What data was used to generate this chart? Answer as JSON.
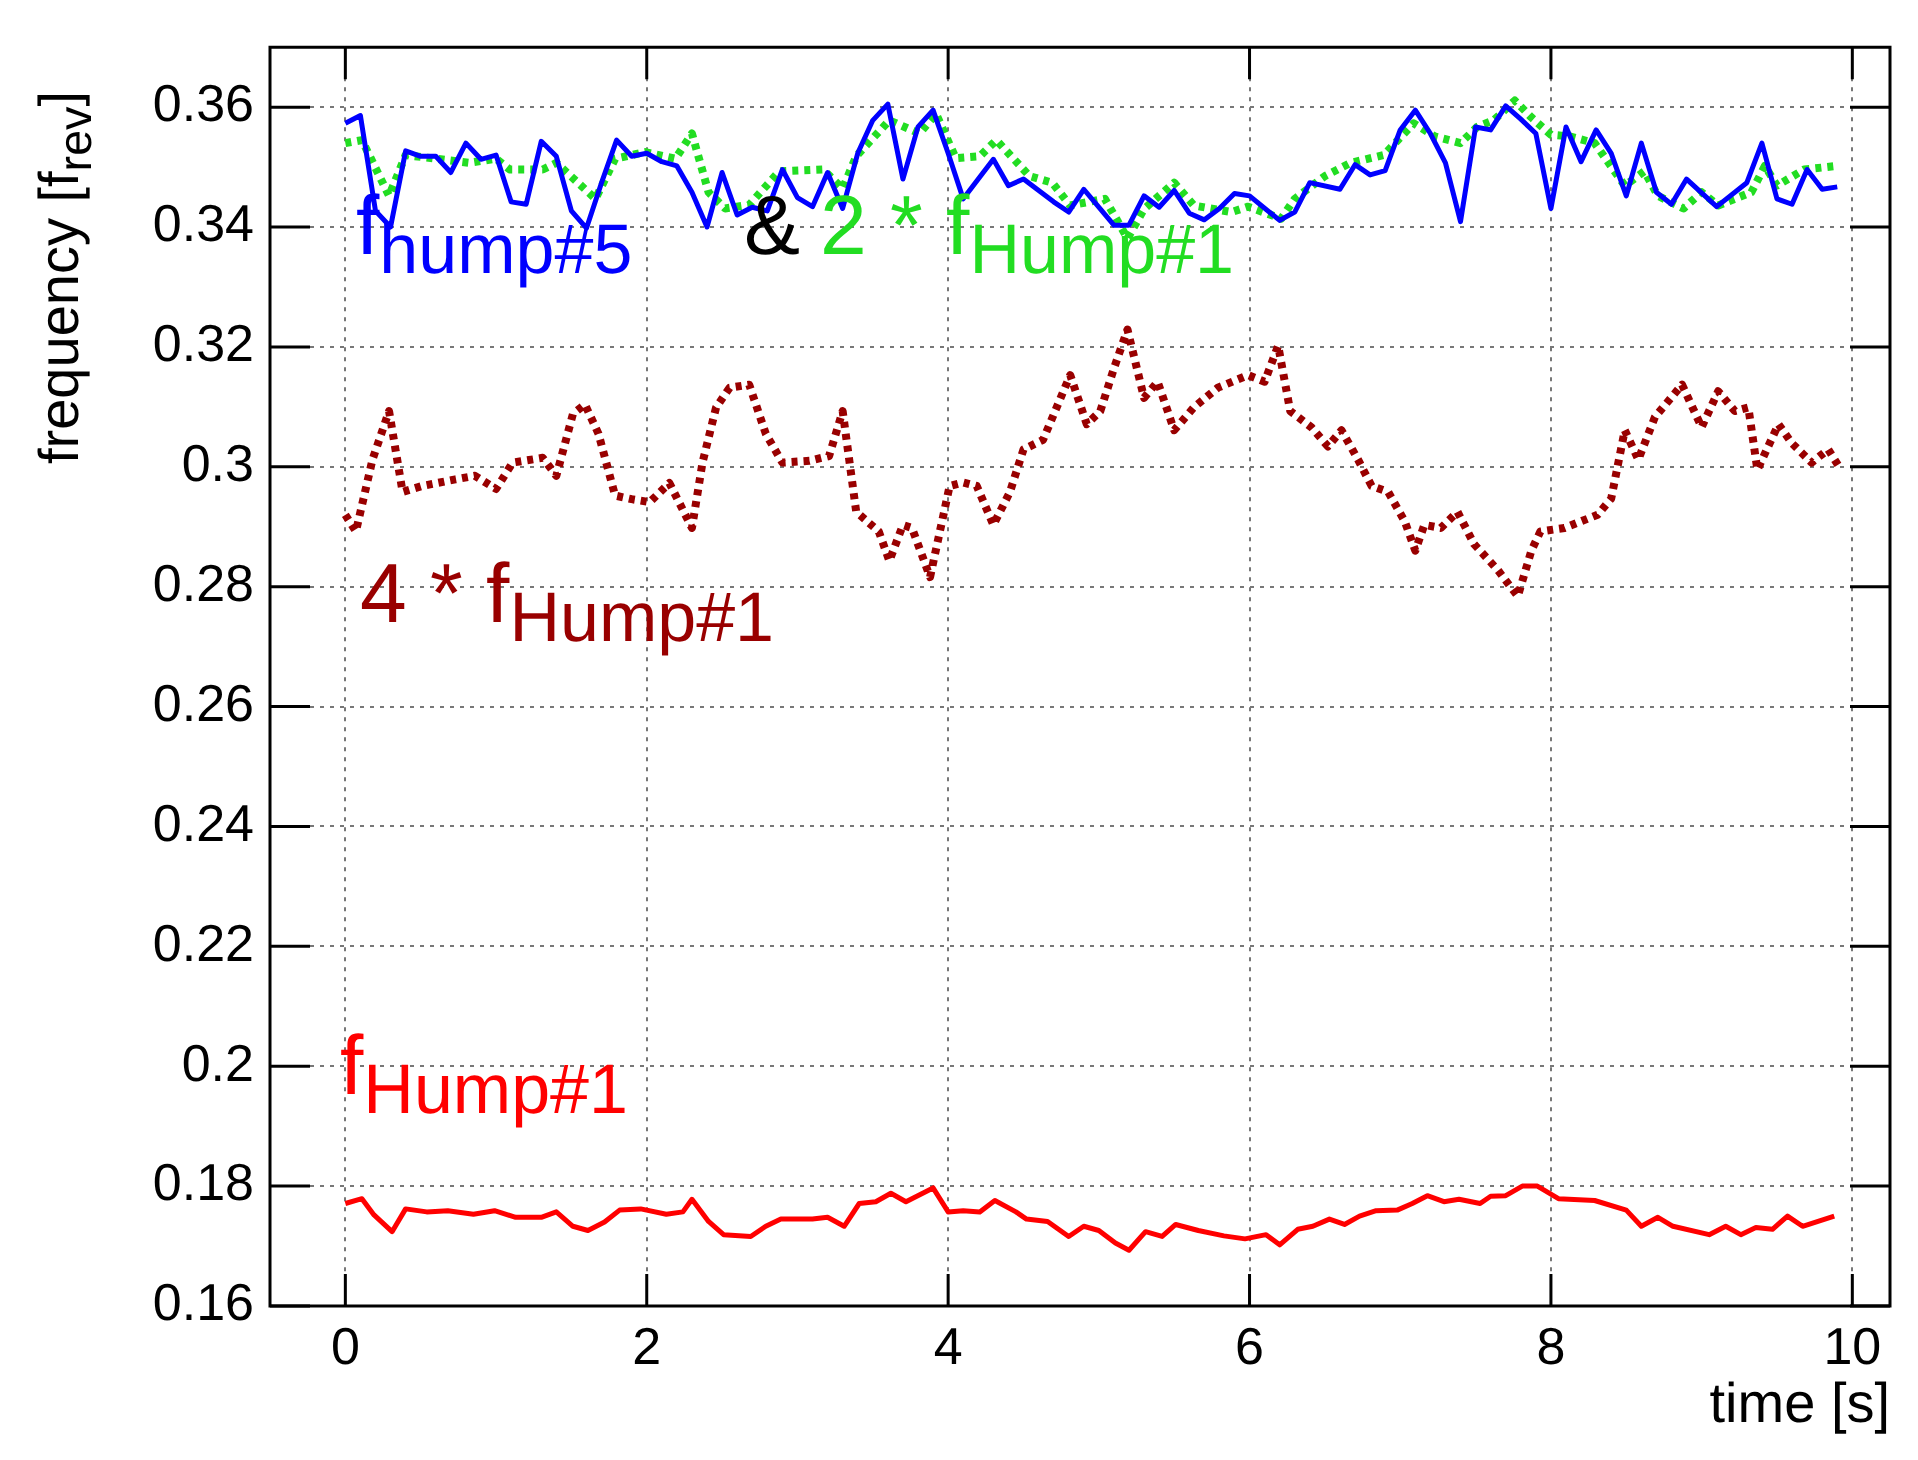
{
  "chart_data": {
    "type": "line",
    "xlabel": "time [s]",
    "ylabel": "frequency [f$_{rev}$]",
    "xlim": [
      -0.5,
      10.25
    ],
    "ylim": [
      0.16,
      0.37
    ],
    "xticks": [
      0,
      2,
      4,
      6,
      8,
      10
    ],
    "yticks": [
      0.16,
      0.18,
      0.2,
      0.22,
      0.24,
      0.26,
      0.28,
      0.3,
      0.32,
      0.34,
      0.36
    ],
    "grid": true,
    "legend": false,
    "marker": "none",
    "annotations": [
      "&"
    ],
    "series": [
      {
        "name": "f$_{hump#5}$",
        "color": "#0000ff",
        "line_style": "solid",
        "x": [
          0,
          0.1,
          0.2,
          0.3,
          0.4,
          0.5,
          0.6,
          0.7,
          0.8,
          0.9,
          1,
          1.1,
          1.2,
          1.3,
          1.4,
          1.5,
          1.6,
          1.7,
          1.8,
          1.9,
          2,
          2.1,
          2.2,
          2.3,
          2.4,
          2.5,
          2.6,
          2.7,
          2.8,
          2.9,
          3,
          3.1,
          3.2,
          3.3,
          3.4,
          3.5,
          3.6,
          3.7,
          3.8,
          3.9,
          4,
          4.1,
          4.3,
          4.4,
          4.5,
          4.7,
          4.8,
          4.9,
          5.1,
          5.2,
          5.3,
          5.4,
          5.5,
          5.6,
          5.7,
          5.8,
          5.9,
          6,
          6.2,
          6.3,
          6.4,
          6.6,
          6.7,
          6.8,
          6.9,
          7,
          7.1,
          7.2,
          7.3,
          7.4,
          7.5,
          7.6,
          7.7,
          7.8,
          7.9,
          8,
          8.1,
          8.2,
          8.3,
          8.4,
          8.5,
          8.6,
          8.7,
          8.8,
          8.9,
          9.1,
          9.3,
          9.4,
          9.5,
          9.6,
          9.7,
          9.8,
          9.9
        ],
        "values": [
          0.3573,
          0.3586,
          0.3427,
          0.34,
          0.3527,
          0.3518,
          0.3518,
          0.3491,
          0.354,
          0.3513,
          0.352,
          0.3442,
          0.3438,
          0.3543,
          0.3518,
          0.3427,
          0.3398,
          0.3474,
          0.3545,
          0.3518,
          0.3523,
          0.3509,
          0.3502,
          0.3458,
          0.34,
          0.3491,
          0.342,
          0.3433,
          0.3427,
          0.3496,
          0.3449,
          0.3434,
          0.3491,
          0.3431,
          0.3523,
          0.3578,
          0.3605,
          0.348,
          0.3567,
          0.3595,
          0.3523,
          0.3447,
          0.3513,
          0.3469,
          0.348,
          0.3442,
          0.3425,
          0.3463,
          0.3403,
          0.3403,
          0.3452,
          0.3433,
          0.3461,
          0.3423,
          0.3412,
          0.3431,
          0.3456,
          0.3452,
          0.3411,
          0.3425,
          0.3474,
          0.3463,
          0.3504,
          0.3487,
          0.3494,
          0.3562,
          0.3595,
          0.3556,
          0.3507,
          0.3409,
          0.3567,
          0.3562,
          0.3602,
          0.358,
          0.3556,
          0.3431,
          0.3567,
          0.3509,
          0.3562,
          0.3523,
          0.3452,
          0.354,
          0.3458,
          0.3438,
          0.348,
          0.3434,
          0.3474,
          0.354,
          0.3447,
          0.3438,
          0.3496,
          0.3463,
          0.3467
        ]
      },
      {
        "name": "2 * f$_{Hump#1}$",
        "color": "#22dd22",
        "line_style": "dotted",
        "x": [
          0,
          0.11,
          0.29,
          0.4,
          0.6,
          0.82,
          1,
          1.09,
          1.31,
          1.4,
          1.66,
          1.79,
          1.99,
          2.19,
          2.3,
          2.41,
          2.52,
          2.68,
          2.88,
          3.17,
          3.3,
          3.39,
          3.61,
          3.81,
          3.92,
          4.05,
          4.21,
          4.32,
          4.54,
          4.69,
          4.81,
          5.04,
          5.19,
          5.3,
          5.5,
          5.63,
          5.88,
          5.99,
          6.21,
          6.3,
          6.5,
          6.67,
          6.89,
          7.09,
          7.23,
          7.4,
          7.51,
          7.62,
          7.76,
          7.87,
          8,
          8.13,
          8.29,
          8.49,
          8.62,
          8.71,
          8.88,
          9,
          9.11,
          9.33,
          9.42,
          9.5,
          9.68,
          9.9
        ],
        "values": [
          0.354,
          0.3545,
          0.3452,
          0.352,
          0.3514,
          0.3507,
          0.3514,
          0.3496,
          0.3496,
          0.3507,
          0.3447,
          0.3514,
          0.3525,
          0.3514,
          0.3556,
          0.3458,
          0.3431,
          0.3437,
          0.3493,
          0.3496,
          0.3464,
          0.3518,
          0.3578,
          0.3556,
          0.3589,
          0.3515,
          0.3518,
          0.3545,
          0.3485,
          0.3474,
          0.3436,
          0.3447,
          0.3381,
          0.343,
          0.3474,
          0.3436,
          0.3425,
          0.3434,
          0.3414,
          0.3447,
          0.3485,
          0.3507,
          0.352,
          0.3573,
          0.3551,
          0.354,
          0.3567,
          0.3578,
          0.3611,
          0.3583,
          0.3554,
          0.3551,
          0.354,
          0.3469,
          0.3493,
          0.3452,
          0.3431,
          0.3458,
          0.3436,
          0.3458,
          0.3502,
          0.3469,
          0.3496,
          0.3502
        ]
      },
      {
        "name": "4 * f$_{Hump#1}$",
        "color": "#990000",
        "line_style": "dotted",
        "x": [
          0,
          0.07,
          0.18,
          0.29,
          0.38,
          0.51,
          0.73,
          0.86,
          1,
          1.11,
          1.31,
          1.4,
          1.51,
          1.59,
          1.68,
          1.79,
          1.9,
          2.02,
          2.15,
          2.3,
          2.37,
          2.46,
          2.55,
          2.68,
          2.79,
          2.9,
          3.08,
          3.21,
          3.3,
          3.39,
          3.54,
          3.61,
          3.7,
          3.76,
          3.88,
          4.01,
          4.1,
          4.19,
          4.3,
          4.41,
          4.5,
          4.63,
          4.81,
          4.92,
          5.01,
          5.1,
          5.19,
          5.3,
          5.39,
          5.5,
          5.63,
          5.79,
          5.99,
          6.1,
          6.19,
          6.27,
          6.41,
          6.52,
          6.61,
          6.72,
          6.81,
          6.92,
          7.03,
          7.1,
          7.16,
          7.27,
          7.38,
          7.49,
          7.65,
          7.78,
          7.87,
          7.93,
          8.09,
          8.31,
          8.4,
          8.49,
          8.58,
          8.69,
          8.87,
          9,
          9.11,
          9.22,
          9.31,
          9.37,
          9.51,
          9.6,
          9.73,
          9.84,
          9.91
        ],
        "values": [
          0.292,
          0.2892,
          0.3012,
          0.3093,
          0.2958,
          0.2968,
          0.2979,
          0.2985,
          0.2963,
          0.3007,
          0.3015,
          0.2985,
          0.3088,
          0.3104,
          0.3055,
          0.2952,
          0.2946,
          0.2941,
          0.2973,
          0.2898,
          0.3007,
          0.3099,
          0.3132,
          0.3137,
          0.3055,
          0.3007,
          0.301,
          0.3018,
          0.3093,
          0.2925,
          0.2892,
          0.2843,
          0.2903,
          0.2898,
          0.2816,
          0.2968,
          0.2974,
          0.2968,
          0.2903,
          0.2958,
          0.3029,
          0.3045,
          0.3153,
          0.3071,
          0.3093,
          0.3164,
          0.3229,
          0.3115,
          0.3142,
          0.3061,
          0.3099,
          0.3132,
          0.3153,
          0.3142,
          0.3202,
          0.3093,
          0.3066,
          0.3034,
          0.3061,
          0.3012,
          0.2968,
          0.2958,
          0.2909,
          0.286,
          0.2903,
          0.2898,
          0.2925,
          0.2871,
          0.2827,
          0.2784,
          0.286,
          0.2892,
          0.2898,
          0.292,
          0.2947,
          0.3061,
          0.3012,
          0.3083,
          0.3137,
          0.3066,
          0.3126,
          0.3093,
          0.3099,
          0.2995,
          0.3071,
          0.3039,
          0.3007,
          0.3029,
          0.3001
        ]
      },
      {
        "name": "f$_{Hump#1}$",
        "color": "#ff0000",
        "line_style": "solid",
        "x": [
          0,
          0.11,
          0.19,
          0.31,
          0.4,
          0.54,
          0.68,
          0.85,
          0.99,
          1.13,
          1.3,
          1.4,
          1.51,
          1.61,
          1.72,
          1.82,
          1.96,
          2.13,
          2.24,
          2.3,
          2.41,
          2.51,
          2.69,
          2.79,
          2.89,
          3.1,
          3.2,
          3.31,
          3.41,
          3.52,
          3.62,
          3.72,
          3.9,
          4,
          4.1,
          4.21,
          4.31,
          4.45,
          4.52,
          4.66,
          4.8,
          4.9,
          5,
          5.11,
          5.2,
          5.31,
          5.42,
          5.51,
          5.66,
          5.83,
          5.97,
          6.11,
          6.2,
          6.32,
          6.42,
          6.53,
          6.63,
          6.73,
          6.84,
          6.98,
          7.08,
          7.18,
          7.29,
          7.39,
          7.53,
          7.6,
          7.7,
          7.81,
          7.91,
          8.05,
          8.29,
          8.5,
          8.6,
          8.71,
          8.81,
          9.05,
          9.16,
          9.26,
          9.36,
          9.47,
          9.57,
          9.67,
          9.88
        ],
        "values": [
          0.1771,
          0.1779,
          0.1752,
          0.1724,
          0.1762,
          0.1757,
          0.1759,
          0.1753,
          0.1759,
          0.1748,
          0.1748,
          0.1757,
          0.1733,
          0.1726,
          0.174,
          0.176,
          0.1762,
          0.1753,
          0.1757,
          0.1778,
          0.1741,
          0.1719,
          0.1716,
          0.1733,
          0.1745,
          0.1745,
          0.1748,
          0.1733,
          0.1771,
          0.1774,
          0.1788,
          0.1774,
          0.1797,
          0.1757,
          0.1759,
          0.1757,
          0.1776,
          0.1757,
          0.1745,
          0.1741,
          0.1716,
          0.1733,
          0.1726,
          0.1705,
          0.1693,
          0.1724,
          0.1716,
          0.1736,
          0.1726,
          0.1717,
          0.1712,
          0.1719,
          0.1702,
          0.1728,
          0.1733,
          0.1745,
          0.1736,
          0.175,
          0.1759,
          0.176,
          0.1771,
          0.1784,
          0.1774,
          0.1778,
          0.1771,
          0.1783,
          0.1784,
          0.18,
          0.18,
          0.1779,
          0.1776,
          0.176,
          0.1733,
          0.1748,
          0.1733,
          0.1719,
          0.1733,
          0.1719,
          0.1731,
          0.1728,
          0.175,
          0.1733,
          0.175
        ]
      }
    ]
  }
}
